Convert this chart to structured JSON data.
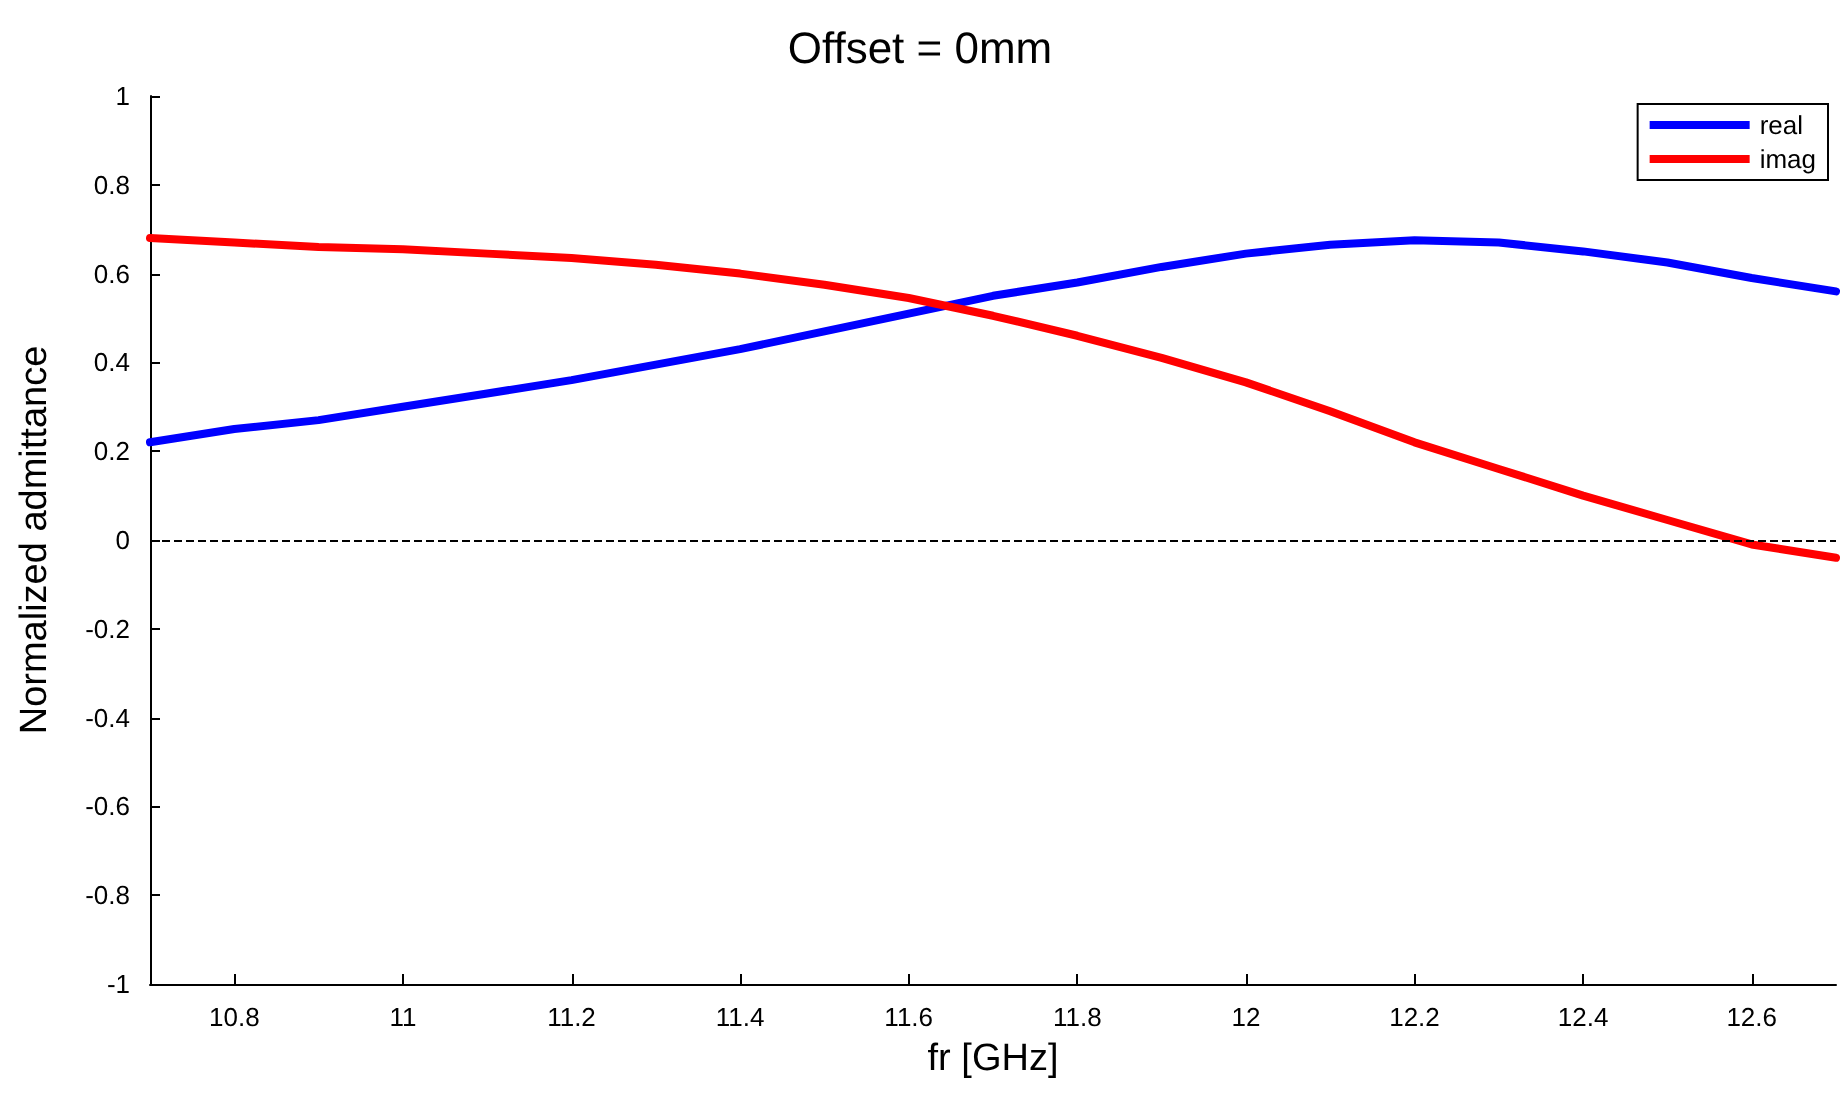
{
  "chart_data": {
    "type": "line",
    "title": "Offset = 0mm",
    "xlabel": "fr [GHz]",
    "ylabel": "Normalized admittance",
    "x": [
      10.7,
      10.8,
      10.9,
      11.0,
      11.1,
      11.2,
      11.3,
      11.4,
      11.5,
      11.6,
      11.7,
      11.8,
      11.9,
      12.0,
      12.1,
      12.2,
      12.3,
      12.4,
      12.5,
      12.6,
      12.7
    ],
    "series": [
      {
        "name": "real",
        "color": "#0000ff",
        "values": [
          0.22,
          0.25,
          0.27,
          0.3,
          0.33,
          0.36,
          0.395,
          0.43,
          0.47,
          0.51,
          0.55,
          0.58,
          0.615,
          0.645,
          0.665,
          0.675,
          0.67,
          0.65,
          0.625,
          0.59,
          0.56
        ]
      },
      {
        "name": "imag",
        "color": "#ff0000",
        "values": [
          0.68,
          0.67,
          0.66,
          0.655,
          0.645,
          0.635,
          0.62,
          0.6,
          0.575,
          0.545,
          0.505,
          0.46,
          0.41,
          0.355,
          0.29,
          0.22,
          0.16,
          0.1,
          0.045,
          -0.01,
          -0.04
        ]
      }
    ],
    "xlim": [
      10.7,
      12.7
    ],
    "xticks": [
      10.8,
      11,
      11.2,
      11.4,
      11.6,
      11.8,
      12,
      12.2,
      12.4,
      12.6
    ],
    "ylim": [
      -1,
      1
    ],
    "yticks": [
      -1,
      -0.8,
      -0.6,
      -0.4,
      -0.2,
      0,
      0.2,
      0.4,
      0.6,
      0.8,
      1
    ],
    "ref_lines": [
      {
        "axis": "y",
        "value": 0,
        "label": null,
        "color": "#000000",
        "line_style": "dashed"
      }
    ],
    "grid": false,
    "legend": "top right",
    "marker": "none",
    "line_style": "solid"
  }
}
